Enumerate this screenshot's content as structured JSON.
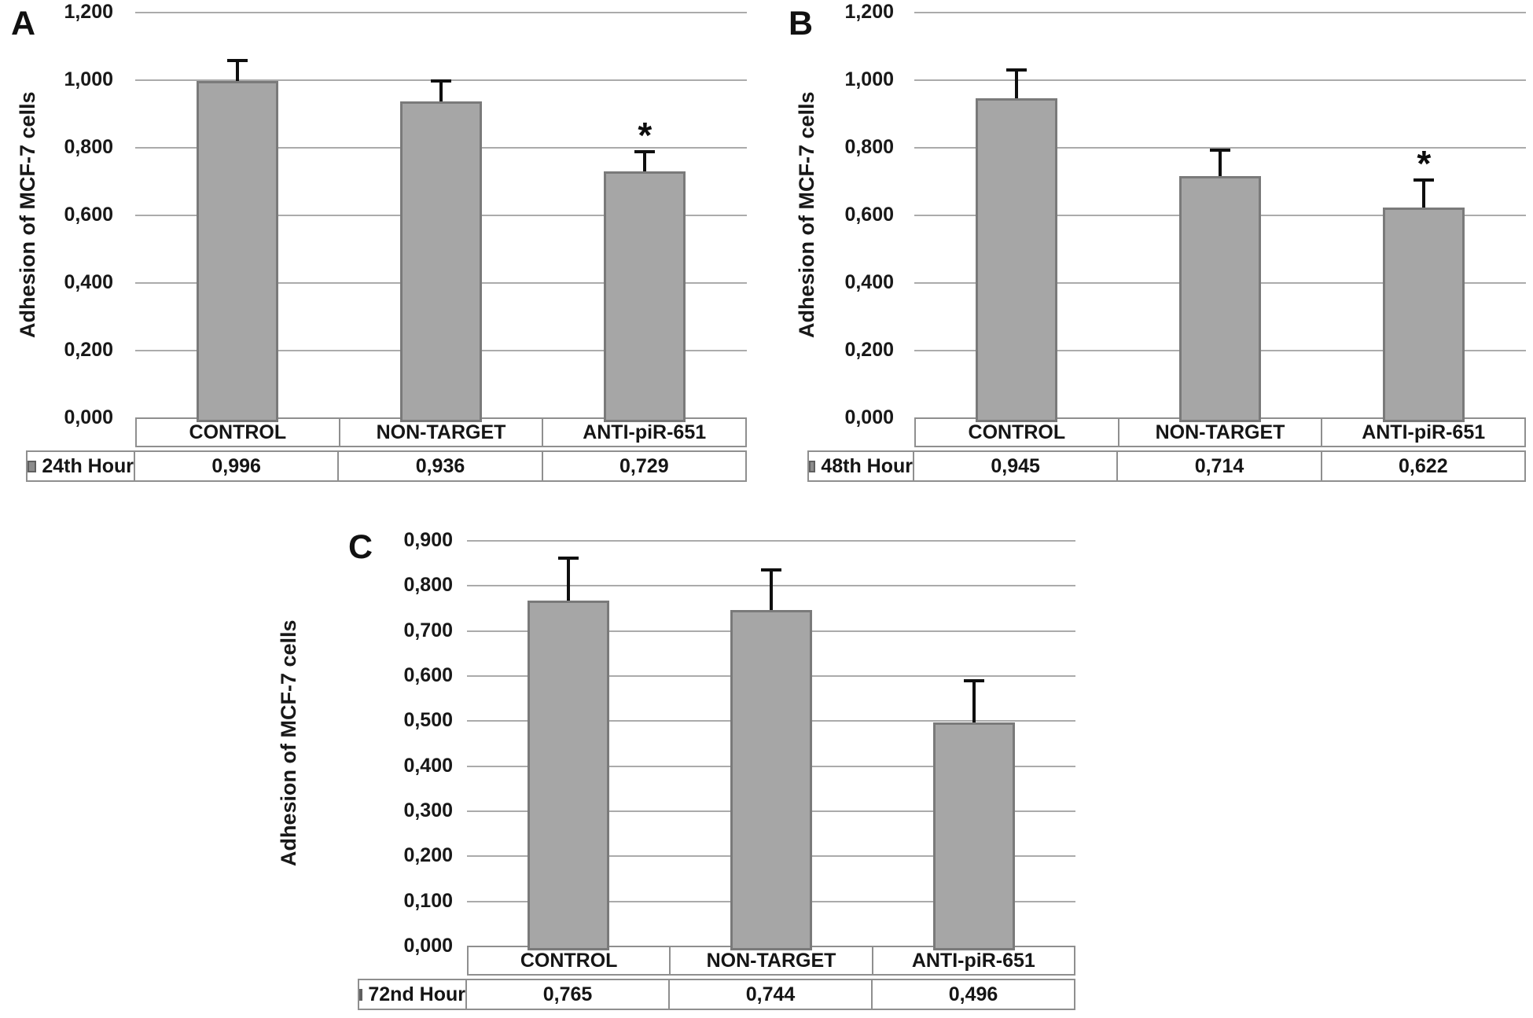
{
  "colors": {
    "bar_fill": "#a6a6a6",
    "bar_border": "#7a7a7a",
    "gridline": "#ababab",
    "axis_line": "#8a8a8a",
    "table_border": "#8f8f8f",
    "error_bar": "#0f0f0f",
    "legend_swatch": "#8c8c8c",
    "text": "#151515",
    "background": "#ffffff"
  },
  "significance_marker": "*",
  "chart_data": [
    {
      "type": "bar",
      "panel": "A",
      "title": "",
      "ylabel": "Adhesion of MCF-7 cells",
      "xlabel": "",
      "series_label": "24th Hour",
      "legend_position": "table-left",
      "grid": true,
      "categories": [
        "CONTROL",
        "NON-TARGET",
        "ANTI-piR-651"
      ],
      "values": [
        0.996,
        0.936,
        0.729
      ],
      "value_labels": [
        "0,996",
        "0,936",
        "0,729"
      ],
      "errors": [
        0.06,
        0.06,
        0.056
      ],
      "significant": [
        false,
        false,
        true
      ],
      "ylim": [
        0,
        1.2
      ],
      "ytick_step": 0.2,
      "yticks": [
        "1,200",
        "1,000",
        "0,800",
        "0,600",
        "0,400",
        "0,200",
        "0,000"
      ]
    },
    {
      "type": "bar",
      "panel": "B",
      "title": "",
      "ylabel": "Adhesion of MCF-7 cells",
      "xlabel": "",
      "series_label": "48th Hour",
      "legend_position": "table-left",
      "grid": true,
      "categories": [
        "CONTROL",
        "NON-TARGET",
        "ANTI-piR-651"
      ],
      "values": [
        0.945,
        0.714,
        0.622
      ],
      "value_labels": [
        "0,945",
        "0,714",
        "0,622"
      ],
      "errors": [
        0.084,
        0.077,
        0.081
      ],
      "significant": [
        false,
        false,
        true
      ],
      "ylim": [
        0,
        1.2
      ],
      "ytick_step": 0.2,
      "yticks": [
        "1,200",
        "1,000",
        "0,800",
        "0,600",
        "0,400",
        "0,200",
        "0,000"
      ]
    },
    {
      "type": "bar",
      "panel": "C",
      "title": "",
      "ylabel": "Adhesion of MCF-7 cells",
      "xlabel": "",
      "series_label": "72nd Hour",
      "legend_position": "table-left",
      "grid": true,
      "categories": [
        "CONTROL",
        "NON-TARGET",
        "ANTI-piR-651"
      ],
      "values": [
        0.765,
        0.744,
        0.496
      ],
      "value_labels": [
        "0,765",
        "0,744",
        "0,496"
      ],
      "errors": [
        0.095,
        0.089,
        0.091
      ],
      "significant": [
        false,
        false,
        false
      ],
      "ylim": [
        0,
        0.9
      ],
      "ytick_step": 0.1,
      "yticks": [
        "0,900",
        "0,800",
        "0,700",
        "0,600",
        "0,500",
        "0,400",
        "0,300",
        "0,200",
        "0,100",
        "0,000"
      ]
    }
  ]
}
